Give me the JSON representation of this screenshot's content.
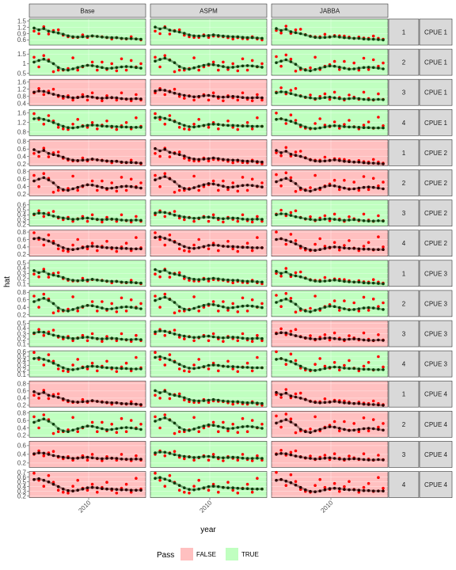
{
  "chart_data": {
    "type": "scatter",
    "xlabel": "year",
    "ylabel": "hat",
    "x_tick_labels": [
      "2010"
    ],
    "column_strips": [
      "Base",
      "ASPM",
      "JABBA"
    ],
    "legend": {
      "title": "Pass",
      "placement": "bottom",
      "entries": [
        {
          "label": "FALSE",
          "color": "#ffc0c0"
        },
        {
          "label": "TRUE",
          "color": "#c0ffc0"
        }
      ]
    },
    "colors": {
      "pass_false": "#ffc0c0",
      "pass_true": "#c0ffc0",
      "observed": "#ff0000",
      "fitted_points": "#000000",
      "smooth_line": "#6b9a6b"
    },
    "rows": [
      {
        "fleet": "1",
        "index": "CPUE 1",
        "yticks": [
          0.6,
          0.9,
          1.2,
          1.5
        ],
        "ylim": [
          0.35,
          1.6
        ],
        "pass": [
          true,
          true,
          true
        ]
      },
      {
        "fleet": "2",
        "index": "CPUE 1",
        "yticks": [
          0.5,
          1.0,
          1.5
        ],
        "ylim": [
          0.4,
          1.75
        ],
        "pass": [
          true,
          true,
          true
        ]
      },
      {
        "fleet": "3",
        "index": "CPUE 1",
        "yticks": [
          0.4,
          0.8,
          1.2,
          1.6
        ],
        "ylim": [
          0.3,
          1.75
        ],
        "pass": [
          false,
          false,
          true
        ]
      },
      {
        "fleet": "4",
        "index": "CPUE 1",
        "yticks": [
          0.8,
          1.2,
          1.6
        ],
        "ylim": [
          0.65,
          1.75
        ],
        "pass": [
          true,
          true,
          true
        ]
      },
      {
        "fleet": "1",
        "index": "CPUE 2",
        "yticks": [
          0.2,
          0.4,
          0.6,
          0.8
        ],
        "ylim": [
          0.15,
          0.85
        ],
        "pass": [
          false,
          false,
          false
        ]
      },
      {
        "fleet": "2",
        "index": "CPUE 2",
        "yticks": [
          0.2,
          0.4,
          0.6,
          0.8
        ],
        "ylim": [
          0.15,
          0.85
        ],
        "pass": [
          false,
          false,
          false
        ]
      },
      {
        "fleet": "3",
        "index": "CPUE 2",
        "yticks": [
          0.2,
          0.3,
          0.4,
          0.5,
          0.6
        ],
        "ylim": [
          0.17,
          0.7
        ],
        "pass": [
          true,
          true,
          true
        ]
      },
      {
        "fleet": "4",
        "index": "CPUE 2",
        "yticks": [
          0.2,
          0.4,
          0.6,
          0.8
        ],
        "ylim": [
          0.15,
          0.85
        ],
        "pass": [
          false,
          false,
          false
        ]
      },
      {
        "fleet": "1",
        "index": "CPUE 3",
        "yticks": [
          0.1,
          0.2,
          0.3,
          0.4,
          0.5
        ],
        "ylim": [
          0.05,
          0.55
        ],
        "pass": [
          true,
          true,
          true
        ]
      },
      {
        "fleet": "2",
        "index": "CPUE 3",
        "yticks": [
          0.2,
          0.4,
          0.6,
          0.8
        ],
        "ylim": [
          0.15,
          0.85
        ],
        "pass": [
          true,
          true,
          true
        ]
      },
      {
        "fleet": "3",
        "index": "CPUE 3",
        "yticks": [
          0.1,
          0.2,
          0.3,
          0.4,
          0.5
        ],
        "ylim": [
          0.05,
          0.55
        ],
        "pass": [
          true,
          true,
          false
        ]
      },
      {
        "fleet": "4",
        "index": "CPUE 3",
        "yticks": [
          0.1,
          0.2,
          0.3,
          0.4,
          0.5,
          0.6
        ],
        "ylim": [
          0.05,
          0.62
        ],
        "pass": [
          true,
          true,
          true
        ]
      },
      {
        "fleet": "1",
        "index": "CPUE 4",
        "yticks": [
          0.2,
          0.4,
          0.6,
          0.8
        ],
        "ylim": [
          0.15,
          0.88
        ],
        "pass": [
          false,
          true,
          false
        ]
      },
      {
        "fleet": "2",
        "index": "CPUE 4",
        "yticks": [
          0.2,
          0.4,
          0.6,
          0.8
        ],
        "ylim": [
          0.15,
          0.85
        ],
        "pass": [
          true,
          true,
          false
        ]
      },
      {
        "fleet": "3",
        "index": "CPUE 4",
        "yticks": [
          0.2,
          0.4,
          0.6
        ],
        "ylim": [
          0.1,
          0.7
        ],
        "pass": [
          false,
          true,
          false
        ]
      },
      {
        "fleet": "4",
        "index": "CPUE 4",
        "yticks": [
          0.2,
          0.3,
          0.4,
          0.5,
          0.6,
          0.7
        ],
        "ylim": [
          0.17,
          0.72
        ],
        "pass": [
          false,
          true,
          false
        ]
      }
    ],
    "series": [
      {
        "observed": [
          0.48,
          0.4,
          0.62,
          0.39,
          0.5,
          0.52,
          0.35,
          0.3,
          0.28,
          0.28,
          0.36,
          0.28,
          0.32,
          0.31,
          0.3,
          0.27,
          0.23,
          0.27,
          0.24,
          0.23,
          0.3,
          0.23,
          0.2
        ],
        "fitted": [
          0.58,
          0.52,
          0.56,
          0.48,
          0.45,
          0.42,
          0.38,
          0.33,
          0.3,
          0.29,
          0.3,
          0.31,
          0.33,
          0.31,
          0.29,
          0.28,
          0.27,
          0.27,
          0.25,
          0.24,
          0.24,
          0.23,
          0.22
        ]
      },
      {
        "observed": [
          0.7,
          0.4,
          0.75,
          0.62,
          0.25,
          0.3,
          0.3,
          0.35,
          0.68,
          0.3,
          0.4,
          0.45,
          0.55,
          0.3,
          0.55,
          0.32,
          0.5,
          0.28,
          0.65,
          0.3,
          0.6,
          0.4,
          0.5
        ],
        "fitted": [
          0.55,
          0.6,
          0.64,
          0.58,
          0.5,
          0.38,
          0.32,
          0.3,
          0.34,
          0.38,
          0.42,
          0.45,
          0.44,
          0.41,
          0.38,
          0.35,
          0.36,
          0.38,
          0.4,
          0.41,
          0.4,
          0.38,
          0.36
        ]
      },
      {
        "observed": [
          0.5,
          0.62,
          0.45,
          0.55,
          0.6,
          0.4,
          0.35,
          0.42,
          0.3,
          0.38,
          0.45,
          0.3,
          0.5,
          0.35,
          0.28,
          0.42,
          0.36,
          0.3,
          0.5,
          0.32,
          0.28,
          0.45,
          0.3
        ],
        "fitted": [
          0.52,
          0.55,
          0.54,
          0.5,
          0.46,
          0.43,
          0.4,
          0.38,
          0.36,
          0.37,
          0.39,
          0.4,
          0.38,
          0.36,
          0.35,
          0.36,
          0.37,
          0.36,
          0.34,
          0.33,
          0.33,
          0.34,
          0.33
        ]
      },
      {
        "observed": [
          0.78,
          0.6,
          0.45,
          0.72,
          0.55,
          0.35,
          0.3,
          0.28,
          0.45,
          0.6,
          0.4,
          0.35,
          0.5,
          0.3,
          0.42,
          0.55,
          0.35,
          0.28,
          0.4,
          0.5,
          0.3,
          0.65,
          0.38
        ],
        "fitted": [
          0.62,
          0.64,
          0.6,
          0.56,
          0.5,
          0.44,
          0.38,
          0.34,
          0.33,
          0.35,
          0.38,
          0.41,
          0.42,
          0.41,
          0.39,
          0.38,
          0.38,
          0.37,
          0.36,
          0.36,
          0.35,
          0.35,
          0.35
        ]
      }
    ]
  }
}
